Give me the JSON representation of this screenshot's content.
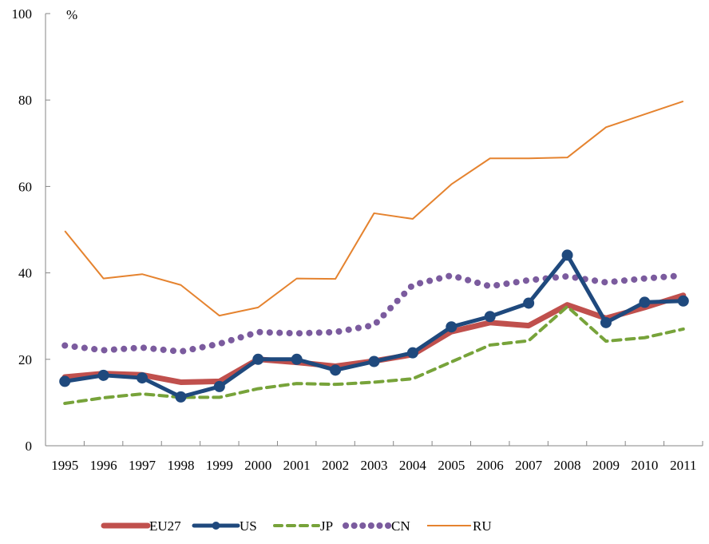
{
  "chart_data": {
    "type": "line",
    "title": "",
    "xlabel": "",
    "ylabel": "%",
    "ylim": [
      0,
      100
    ],
    "yticks": [
      0,
      20,
      40,
      60,
      80,
      100
    ],
    "grid": false,
    "legend_position": "bottom",
    "categories": [
      "1995",
      "1996",
      "1997",
      "1998",
      "1999",
      "2000",
      "2001",
      "2002",
      "2003",
      "2004",
      "2005",
      "2006",
      "2007",
      "2008",
      "2009",
      "2010",
      "2011"
    ],
    "series": [
      {
        "name": "EU27",
        "color": "#C0504D",
        "style": "thick-solid",
        "values": [
          15.9,
          16.7,
          16.4,
          14.7,
          14.9,
          20.0,
          19.3,
          18.4,
          19.6,
          21.1,
          26.4,
          28.5,
          27.8,
          32.6,
          29.5,
          32.0,
          34.8
        ]
      },
      {
        "name": "US",
        "color": "#1F497D",
        "style": "solid-markers",
        "values": [
          14.9,
          16.3,
          15.7,
          11.3,
          13.7,
          20.0,
          20.0,
          17.5,
          19.5,
          21.5,
          27.5,
          29.9,
          33.0,
          44.1,
          28.5,
          33.2,
          33.5
        ]
      },
      {
        "name": "JP",
        "color": "#77A33A",
        "style": "dashed",
        "values": [
          9.8,
          11.1,
          12.0,
          11.2,
          11.2,
          13.2,
          14.4,
          14.2,
          14.7,
          15.5,
          19.4,
          23.3,
          24.3,
          32.2,
          24.2,
          25.0,
          27.0
        ]
      },
      {
        "name": "CN",
        "color": "#7B5B9E",
        "style": "dotted",
        "values": [
          23.2,
          22.1,
          22.7,
          21.8,
          23.6,
          26.3,
          26.0,
          26.3,
          27.9,
          37.2,
          39.4,
          36.9,
          38.3,
          39.2,
          37.8,
          38.7,
          39.4
        ]
      },
      {
        "name": "RU",
        "color": "#E5832F",
        "style": "thin-solid",
        "values": [
          49.7,
          38.7,
          39.7,
          37.2,
          30.1,
          32.0,
          38.7,
          38.6,
          53.8,
          52.5,
          60.5,
          66.5,
          66.5,
          66.7,
          73.7,
          76.7,
          79.7
        ]
      }
    ]
  }
}
